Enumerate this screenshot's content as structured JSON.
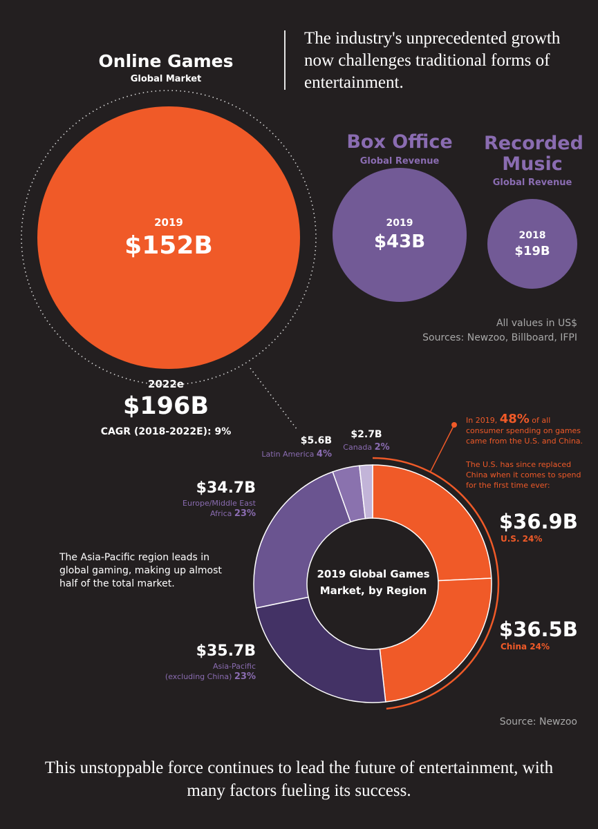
{
  "header": {
    "online_games_title": "Online Games",
    "online_games_subtitle": "Global Market",
    "intro_text": "The industry's unprecedented growth now challenges traditional forms of entertainment."
  },
  "comparison": {
    "online_games": {
      "year": "2019",
      "value_label": "$152B"
    },
    "box_office": {
      "title": "Box Office",
      "subtitle": "Global Revenue",
      "year": "2019",
      "value_label": "$43B"
    },
    "recorded_music": {
      "title": "Recorded Music",
      "subtitle": "Global Revenue",
      "year": "2018",
      "value_label": "$19B"
    },
    "values_note": "All values in US$",
    "sources": "Sources: Newzoo, Billboard, IFPI",
    "projection": {
      "year": "2022e",
      "value_label": "$196B",
      "cagr": "CAGR (2018-2022E): 9%"
    }
  },
  "donut": {
    "center_line1": "2019 Global Games",
    "center_line2": "Market, by Region",
    "latin_america": {
      "value": "$5.6B",
      "name": "Latin America",
      "pct": "4%"
    },
    "canada": {
      "value": "$2.7B",
      "name": "Canada",
      "pct": "2%"
    },
    "europe": {
      "value": "$34.7B",
      "name1": "Europe/Middle East",
      "name2": "Africa",
      "pct": "23%"
    },
    "asia_pacific": {
      "value": "$35.7B",
      "name1": "Asia-Pacific",
      "name2": "(excluding China)",
      "pct": "23%"
    },
    "us": {
      "value": "$36.9B",
      "label": "U.S. 24%"
    },
    "china": {
      "value": "$36.5B",
      "label": "China 24%"
    },
    "note_prefix": "In 2019,",
    "note_pct": "48%",
    "note_suffix": "of all consumer spending on games came from the U.S. and China.",
    "note2": "The U.S. has since replaced China when it comes to spend for the first time ever:",
    "ap_note": "The Asia-Pacific region leads in global gaming, making up almost half of the total market.",
    "source": "Source: Newzoo"
  },
  "closing": "This unstoppable force continues to lead the future of entertainment, with many factors fueling its success.",
  "colors": {
    "background": "#231f20",
    "orange": "#f05a28",
    "purple": "#725a96",
    "purple_dark": "#433265",
    "purple_mid": "#6a5490",
    "purple_light": "#8a72ae",
    "purple_pale": "#c2b4d8"
  },
  "chart_data": [
    {
      "type": "bubble",
      "title": "",
      "categories": [
        "Online Games",
        "Box Office",
        "Recorded Music"
      ],
      "years": [
        "2019",
        "2019",
        "2018"
      ],
      "values": [
        152,
        43,
        19
      ],
      "unit": "$B",
      "projection": {
        "year": "2022e",
        "value": 196
      }
    },
    {
      "type": "pie",
      "title": "2019 Global Games Market, by Region",
      "unit": "$B",
      "slices": [
        {
          "name": "U.S.",
          "value": 36.9,
          "pct": 24,
          "color": "#f05a28"
        },
        {
          "name": "China",
          "value": 36.5,
          "pct": 24,
          "color": "#f05a28"
        },
        {
          "name": "Asia-Pacific (excluding China)",
          "value": 35.7,
          "pct": 23,
          "color": "#433265"
        },
        {
          "name": "Europe/Middle East Africa",
          "value": 34.7,
          "pct": 23,
          "color": "#6a5490"
        },
        {
          "name": "Latin America",
          "value": 5.6,
          "pct": 4,
          "color": "#8a72ae"
        },
        {
          "name": "Canada",
          "value": 2.7,
          "pct": 2,
          "color": "#c2b4d8"
        }
      ]
    }
  ]
}
